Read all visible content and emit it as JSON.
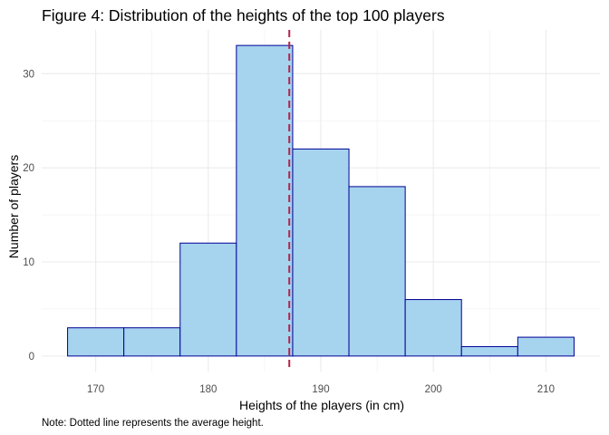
{
  "chart_data": {
    "type": "bar",
    "title": "Figure 4: Distribution of the heights of the top 100 players",
    "xlabel": "Heights of the players (in cm)",
    "ylabel": "Number of players",
    "caption": "Note: Dotted line represents the average height.",
    "bins": [
      {
        "x0": 167.5,
        "x1": 172.5,
        "count": 3
      },
      {
        "x0": 172.5,
        "x1": 177.5,
        "count": 3
      },
      {
        "x0": 177.5,
        "x1": 182.5,
        "count": 12
      },
      {
        "x0": 182.5,
        "x1": 187.5,
        "count": 33
      },
      {
        "x0": 187.5,
        "x1": 192.5,
        "count": 22
      },
      {
        "x0": 192.5,
        "x1": 197.5,
        "count": 18
      },
      {
        "x0": 197.5,
        "x1": 202.5,
        "count": 6
      },
      {
        "x0": 202.5,
        "x1": 207.5,
        "count": 1
      },
      {
        "x0": 207.5,
        "x1": 212.5,
        "count": 2
      }
    ],
    "mean_line": 187.2,
    "xlim": [
      165.2,
      214.8
    ],
    "ylim": [
      -1.65,
      34.65
    ],
    "x_ticks": [
      170,
      180,
      190,
      200,
      210
    ],
    "x_tick_labels": [
      "170",
      "180",
      "190",
      "200",
      "210"
    ],
    "y_ticks": [
      0,
      10,
      20,
      30
    ],
    "y_tick_labels": [
      "0",
      "10",
      "20",
      "30"
    ],
    "grid": true,
    "colors": {
      "bar_fill": "#a6d3ee",
      "bar_stroke": "#000096",
      "mean_line": "#b5224a",
      "grid": "#ebebeb"
    }
  }
}
